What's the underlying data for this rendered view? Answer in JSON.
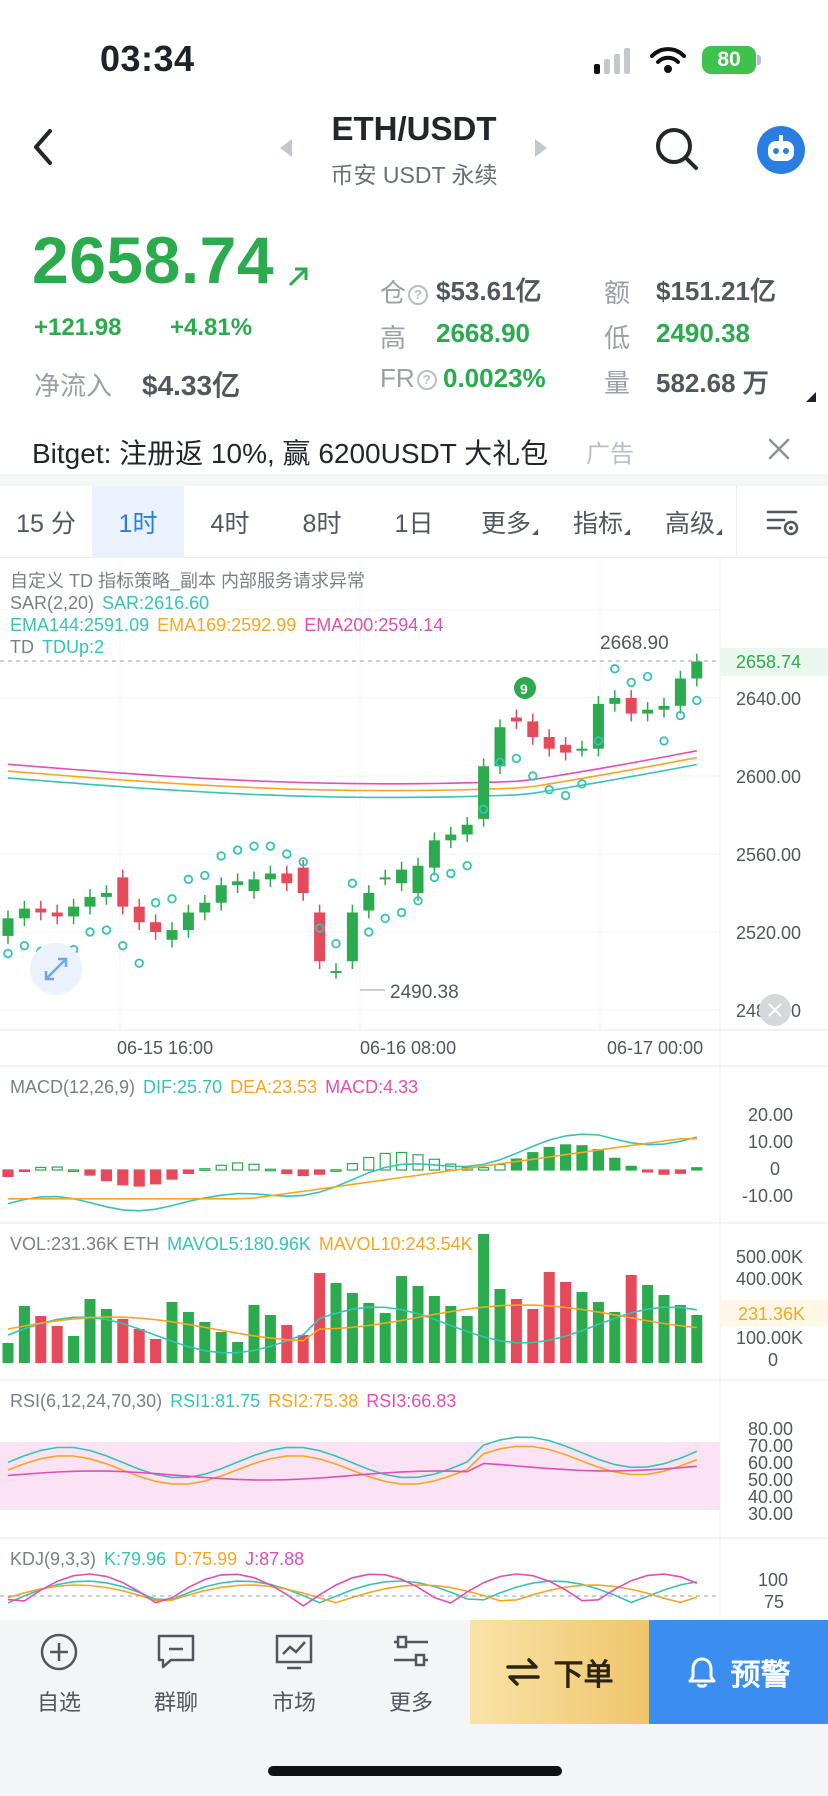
{
  "status_bar": {
    "time": "03:34",
    "battery": "80"
  },
  "header": {
    "pair": "ETH/USDT",
    "exchange": "币安 USDT 永续"
  },
  "price": {
    "last": "2658.74",
    "change_abs": "+121.98",
    "change_pct": "+4.81%",
    "netflow_label": "净流入",
    "netflow_value": "$4.33亿"
  },
  "stats": {
    "oi_label": "仓",
    "oi_value": "$53.61亿",
    "amount_label": "额",
    "amount_value": "$151.21亿",
    "high_label": "高",
    "high_value": "2668.90",
    "low_label": "低",
    "low_value": "2490.38",
    "fr_label": "FR",
    "fr_value": "0.0023%",
    "volume_label": "量",
    "volume_value": "582.68 万",
    "help_glyph": "?"
  },
  "ad": {
    "text": "Bitget: 注册返 10%, 赢 6200USDT 大礼包",
    "tag": "广告"
  },
  "tabs": [
    {
      "label": "15 分"
    },
    {
      "label": "1时"
    },
    {
      "label": "4时"
    },
    {
      "label": "8时"
    },
    {
      "label": "1日"
    },
    {
      "label": "更多"
    },
    {
      "label": "指标"
    },
    {
      "label": "高级"
    }
  ],
  "main_chart": {
    "title": "自定义 TD 指标策略_副本 内部服务请求异常",
    "sar_name": "SAR(2,20)",
    "sar_value": "SAR:2616.60",
    "ema144": "EMA144:2591.09",
    "ema169": "EMA169:2592.99",
    "ema200": "EMA200:2594.14",
    "td_name": "TD",
    "td_value": "TDUp:2",
    "high_marker": "2668.90",
    "low_marker": "2490.38",
    "last_price_tag": "2658.74",
    "td_badge": "9",
    "y_ticks": [
      "2640.00",
      "2600.00",
      "2560.00",
      "2520.00",
      "2480.00"
    ],
    "x_ticks": [
      "06-15 16:00",
      "06-16 08:00",
      "06-17 00:00"
    ],
    "close_series": [
      2527,
      2532,
      2530,
      2528,
      2533,
      2538,
      2540,
      2533,
      2525,
      2520,
      2521,
      2530,
      2535,
      2544,
      2546,
      2547,
      2550,
      2545,
      2540,
      2505,
      2500,
      2530,
      2540,
      2548,
      2552,
      2554,
      2567,
      2570,
      2575,
      2605,
      2625,
      2628,
      2620,
      2614,
      2612,
      2614,
      2637,
      2640,
      2632,
      2634,
      2636,
      2650,
      2658.74
    ],
    "open_series": [
      2518,
      2527,
      2532,
      2530,
      2528,
      2533,
      2538,
      2548,
      2533,
      2525,
      2516,
      2521,
      2530,
      2535,
      2544,
      2541,
      2547,
      2550,
      2553,
      2530,
      2500,
      2505,
      2531,
      2548,
      2545,
      2540,
      2553,
      2567,
      2570,
      2578,
      2605,
      2630,
      2628,
      2620,
      2616,
      2614,
      2614,
      2637,
      2640,
      2632,
      2634,
      2636,
      2650
    ],
    "colors": {
      "up": "#2bab4e",
      "down": "#e44a5a",
      "ema144": "#37c3b4",
      "ema169": "#f6a623",
      "ema200": "#e04fb4",
      "sar": "#37c3b4"
    }
  },
  "macd": {
    "name": "MACD(12,26,9)",
    "dif": "DIF:25.70",
    "dea": "DEA:23.53",
    "macd": "MACD:4.33",
    "y_ticks": [
      "20.00",
      "10.00",
      "0",
      "-10.00"
    ]
  },
  "vol": {
    "name": "VOL:231.36K ETH",
    "mavol5": "MAVOL5:180.96K",
    "mavol10": "MAVOL10:243.54K",
    "y_ticks": [
      "500.00K",
      "400.00K",
      "100.00K",
      "0"
    ],
    "current_tag": "231.36K"
  },
  "rsi": {
    "name": "RSI(6,12,24,70,30)",
    "rsi1": "RSI1:81.75",
    "rsi2": "RSI2:75.38",
    "rsi3": "RSI3:66.83",
    "y_ticks": [
      "80.00",
      "70.00",
      "60.00",
      "50.00",
      "40.00",
      "30.00"
    ]
  },
  "kdj": {
    "name": "KDJ(9,3,3)",
    "k": "K:79.96",
    "d": "D:75.99",
    "j": "J:87.88",
    "y_ticks": [
      "100",
      "75"
    ]
  },
  "bottom_nav": {
    "items": [
      {
        "label": "自选"
      },
      {
        "label": "群聊"
      },
      {
        "label": "市场"
      },
      {
        "label": "更多"
      }
    ],
    "order_label": "下单",
    "alert_label": "预警"
  }
}
